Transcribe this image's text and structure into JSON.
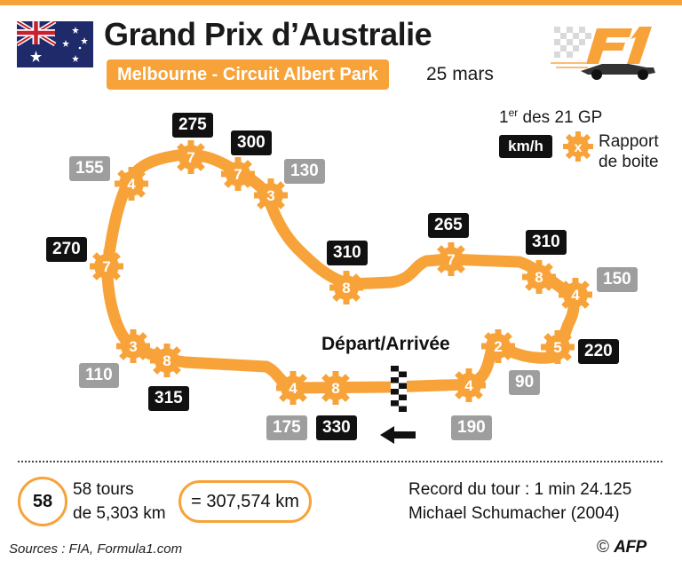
{
  "header": {
    "title": "Grand Prix d’Australie",
    "subtitle": "Melbourne -  Circuit Albert Park",
    "date": "25 mars",
    "logo": "F1"
  },
  "colors": {
    "accent": "#f7a33a",
    "slow_badge": "#9e9e9e",
    "fast_badge": "#111111"
  },
  "legend": {
    "gp_count_number": "1",
    "gp_count_suffix": "er",
    "gp_count_rest": " des 21 GP",
    "speed_unit": "km/h",
    "gear_symbol": "x",
    "gear_label_line1": "Rapport",
    "gear_label_line2": "de boite"
  },
  "track": {
    "start_label": "Départ/Arrivée",
    "gears": [
      {
        "id": "g1",
        "value": "7"
      },
      {
        "id": "g2",
        "value": "7"
      },
      {
        "id": "g3",
        "value": "3"
      },
      {
        "id": "g4",
        "value": "4"
      },
      {
        "id": "g5",
        "value": "7"
      },
      {
        "id": "g6",
        "value": "3"
      },
      {
        "id": "g7",
        "value": "8"
      },
      {
        "id": "g8",
        "value": "4"
      },
      {
        "id": "g9",
        "value": "8"
      },
      {
        "id": "g10",
        "value": "4"
      },
      {
        "id": "g11",
        "value": "2"
      },
      {
        "id": "g12",
        "value": "5"
      },
      {
        "id": "g13",
        "value": "4"
      },
      {
        "id": "g14",
        "value": "8"
      },
      {
        "id": "g15",
        "value": "7"
      },
      {
        "id": "g16",
        "value": "8"
      }
    ],
    "speeds": [
      {
        "value": "275",
        "kind": "fast"
      },
      {
        "value": "300",
        "kind": "fast"
      },
      {
        "value": "155",
        "kind": "slow"
      },
      {
        "value": "130",
        "kind": "slow"
      },
      {
        "value": "270",
        "kind": "fast"
      },
      {
        "value": "310",
        "kind": "fast"
      },
      {
        "value": "265",
        "kind": "fast"
      },
      {
        "value": "310",
        "kind": "fast"
      },
      {
        "value": "150",
        "kind": "slow"
      },
      {
        "value": "220",
        "kind": "fast"
      },
      {
        "value": "110",
        "kind": "slow"
      },
      {
        "value": "315",
        "kind": "fast"
      },
      {
        "value": "90",
        "kind": "slow"
      },
      {
        "value": "175",
        "kind": "slow"
      },
      {
        "value": "330",
        "kind": "fast"
      },
      {
        "value": "190",
        "kind": "slow"
      }
    ]
  },
  "stats": {
    "laps": "58",
    "laps_line1": "58 tours",
    "laps_line2": "de 5,303 km",
    "total": "= 307,574 km",
    "record_line1": "Record du tour : 1 min 24.125",
    "record_line2": "Michael Schumacher (2004)"
  },
  "footer": {
    "sources": "Sources : FIA, Formula1.com",
    "copyright": "©",
    "agency": "AFP"
  }
}
